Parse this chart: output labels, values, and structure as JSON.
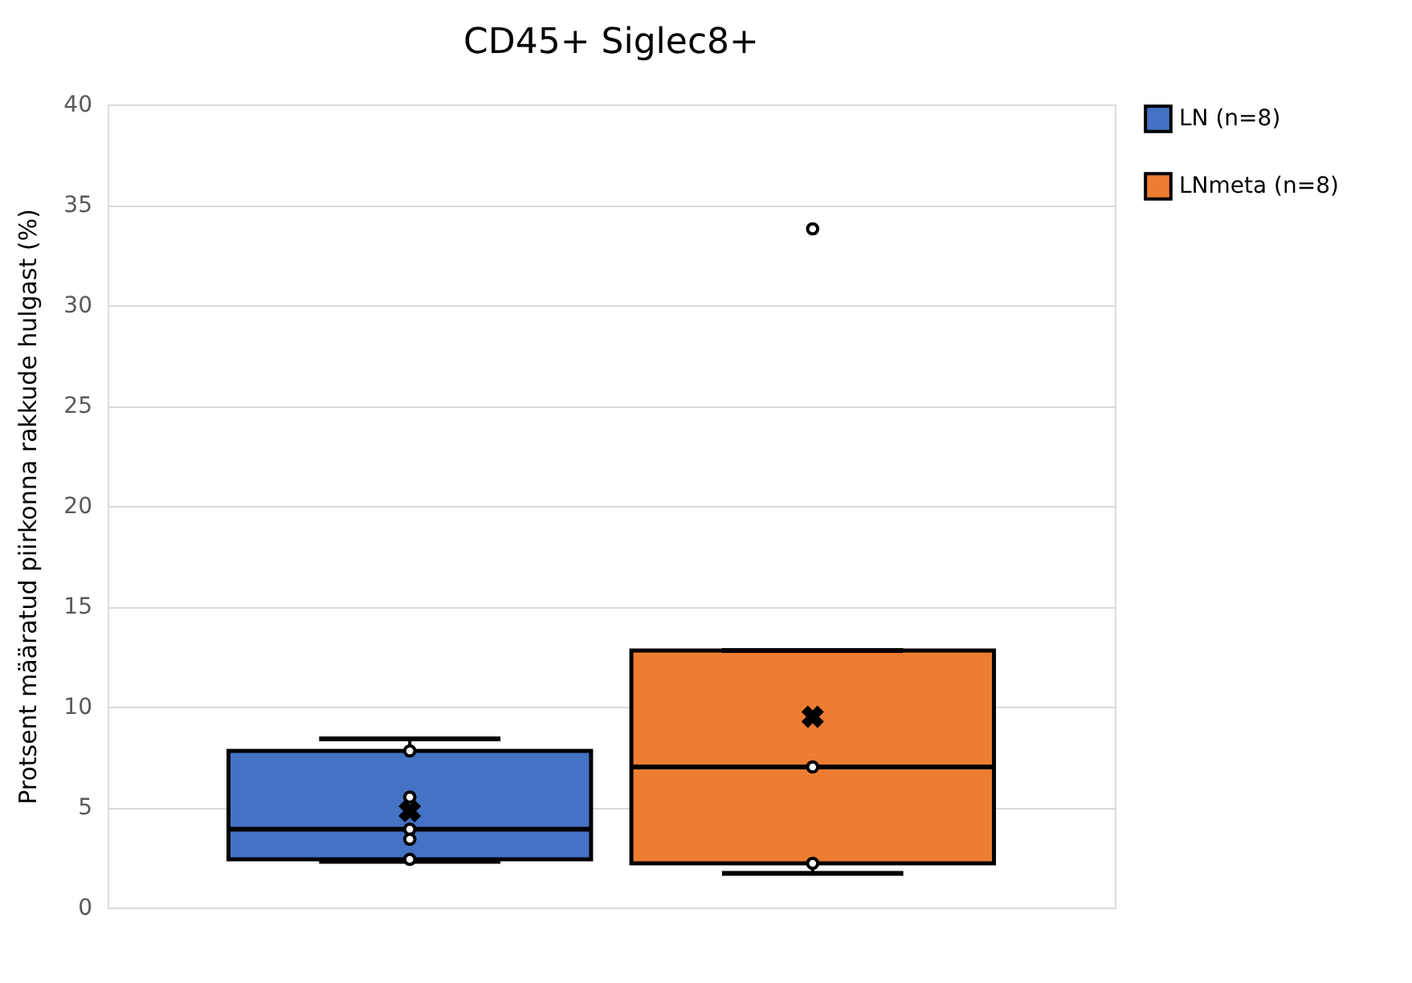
{
  "chart_data": {
    "type": "box",
    "title": "CD45+ Siglec8+",
    "ylabel": "Protsent määratud piirkonna rakkude hulgast (%)",
    "categories": [
      null
    ],
    "series": [
      {
        "name": "LN (n=8)",
        "color": "#4472c4",
        "boxes": [
          {
            "low": 2.3,
            "q1": 2.4,
            "median": 3.9,
            "q3": 7.8,
            "high": 8.4,
            "mean": 4.8,
            "outliers": [
              7.8,
              5.5,
              3.9,
              3.4,
              2.4
            ]
          }
        ]
      },
      {
        "name": "LNmeta (n=8)",
        "color": "#ed7d31",
        "boxes": [
          {
            "low": 1.7,
            "q1": 2.2,
            "median": 7.0,
            "q3": 12.8,
            "high": 12.8,
            "mean": 9.5,
            "outliers": [
              33.8,
              7.0,
              2.2
            ]
          }
        ]
      }
    ],
    "ylim": [
      0,
      40
    ],
    "yticks": [
      0,
      5,
      10,
      15,
      20,
      25,
      30,
      35,
      40
    ],
    "grid": "y",
    "legend": "right"
  }
}
